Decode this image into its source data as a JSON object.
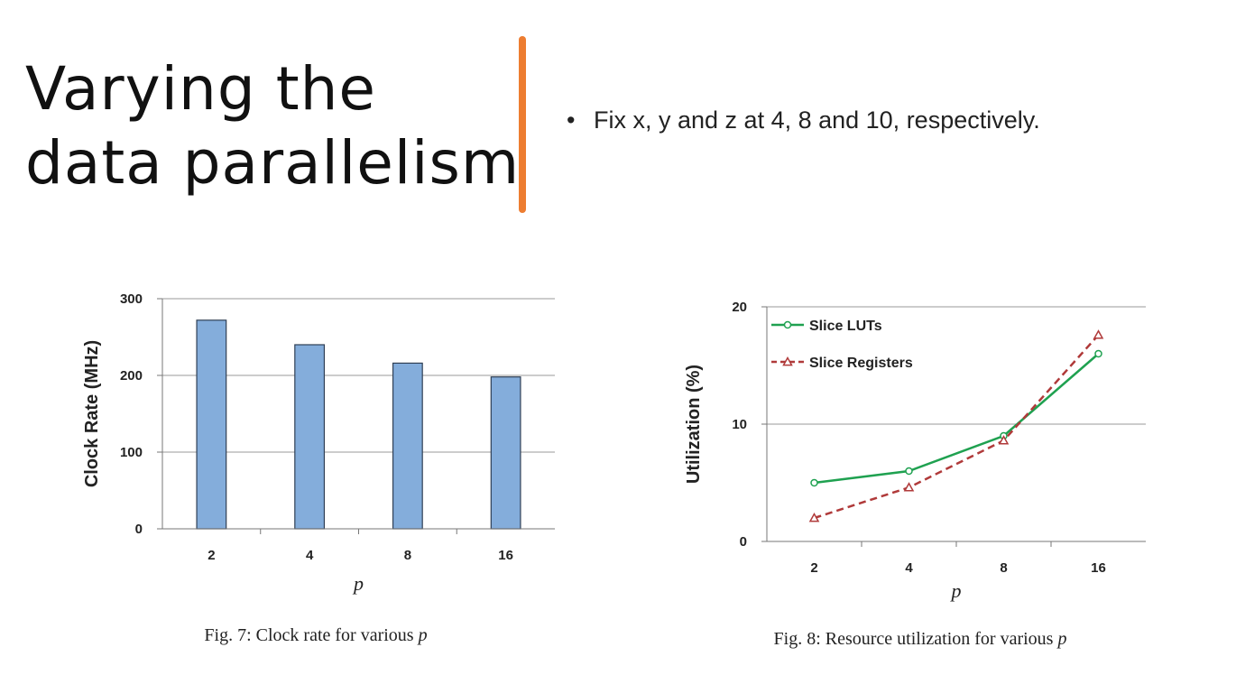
{
  "slide": {
    "title_line1": "Varying the",
    "title_line2": "data parallelism",
    "bullet_marker": "•",
    "bullet": "Fix x, y and z at 4, 8 and 10, respectively.",
    "divider_color": "#ED7D31"
  },
  "chart_data": [
    {
      "type": "bar",
      "title": "",
      "categories": [
        "2",
        "4",
        "8",
        "16"
      ],
      "values": [
        272,
        240,
        216,
        198
      ],
      "xlabel": "p",
      "ylabel": "Clock Rate (MHz)",
      "ylim": [
        0,
        300
      ],
      "yticks": [
        0,
        100,
        200,
        300
      ],
      "grid": true,
      "bar_color": "#84ADDB",
      "caption_prefix": "Fig. 7: Clock rate for various",
      "caption_var": "p"
    },
    {
      "type": "line",
      "title": "",
      "categories": [
        "2",
        "4",
        "8",
        "16"
      ],
      "series": [
        {
          "name": "Slice LUTs",
          "values": [
            5,
            6,
            9,
            16
          ],
          "color": "#1FA150",
          "dash": false,
          "marker": "circle"
        },
        {
          "name": "Slice Registers",
          "values": [
            2,
            4.6,
            8.6,
            17.6
          ],
          "color": "#B03A3A",
          "dash": true,
          "marker": "triangle"
        }
      ],
      "xlabel": "p",
      "ylabel": "Utilization (%)",
      "ylim": [
        0,
        20
      ],
      "yticks": [
        0,
        10,
        20
      ],
      "grid": true,
      "legend_position": "top-left",
      "caption_prefix": "Fig. 8: Resource utilization for various",
      "caption_var": "p"
    }
  ]
}
